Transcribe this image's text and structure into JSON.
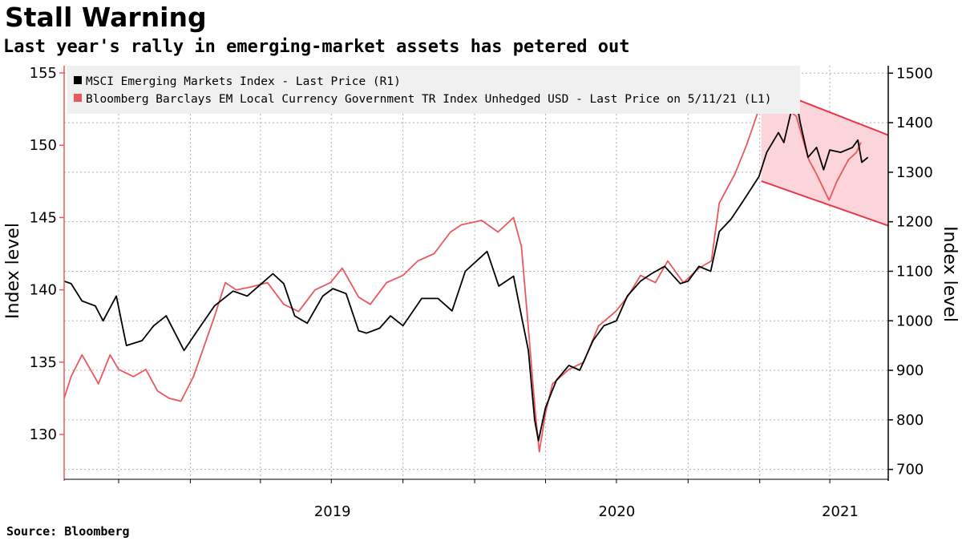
{
  "header": {
    "title": "Stall Warning",
    "subtitle": "Last year's rally in emerging-market assets has petered out"
  },
  "footer": {
    "source": "Source: Bloomberg"
  },
  "colors": {
    "msci": "#000000",
    "bloomberg": "#e8585e",
    "channel_fill": "#fbd5d9",
    "channel_line": "#e8394a",
    "grid": "#b0b0b0",
    "legend_bg": "#f0f0f0"
  },
  "chart_data": {
    "type": "line",
    "x_range": [
      "2018-07-23",
      "2021-06-15"
    ],
    "x_tick_labels": [
      {
        "label": "2019",
        "at": "2019-01-01"
      },
      {
        "label": "2020",
        "at": "2020-01-01"
      },
      {
        "label": "2021",
        "at": "2021-01-01"
      }
    ],
    "x_gridlines": [
      "2018-10-01",
      "2019-01-01",
      "2019-04-01",
      "2019-07-01",
      "2019-10-01",
      "2020-01-01",
      "2020-04-01",
      "2020-07-01",
      "2020-10-01",
      "2021-01-01",
      "2021-04-01"
    ],
    "left_axis": {
      "label": "Index level",
      "ylim": [
        126.9,
        155.5
      ],
      "ticks": [
        130,
        135,
        140,
        145,
        150,
        155
      ]
    },
    "right_axis": {
      "label": "Index level",
      "ylim": [
        680,
        1515
      ],
      "ticks": [
        700,
        800,
        900,
        1000,
        1100,
        1200,
        1300,
        1400,
        1500
      ]
    },
    "grid": true,
    "legend": {
      "placement": "top-left"
    },
    "series": [
      {
        "name": "MSCI Emerging Markets Index - Last Price (R1)",
        "axis": "right",
        "color": "#000000",
        "points": [
          [
            "2018-07-23",
            1080
          ],
          [
            "2018-08-01",
            1075
          ],
          [
            "2018-08-15",
            1040
          ],
          [
            "2018-09-01",
            1030
          ],
          [
            "2018-09-11",
            1000
          ],
          [
            "2018-09-28",
            1050
          ],
          [
            "2018-10-11",
            950
          ],
          [
            "2018-10-31",
            960
          ],
          [
            "2018-11-15",
            990
          ],
          [
            "2018-12-01",
            1010
          ],
          [
            "2018-12-24",
            940
          ],
          [
            "2019-01-10",
            980
          ],
          [
            "2019-02-01",
            1030
          ],
          [
            "2019-02-25",
            1060
          ],
          [
            "2019-03-15",
            1050
          ],
          [
            "2019-04-17",
            1095
          ],
          [
            "2019-05-01",
            1075
          ],
          [
            "2019-05-15",
            1010
          ],
          [
            "2019-05-31",
            995
          ],
          [
            "2019-06-20",
            1050
          ],
          [
            "2019-07-03",
            1065
          ],
          [
            "2019-07-20",
            1055
          ],
          [
            "2019-08-05",
            980
          ],
          [
            "2019-08-15",
            975
          ],
          [
            "2019-09-01",
            985
          ],
          [
            "2019-09-15",
            1010
          ],
          [
            "2019-10-01",
            990
          ],
          [
            "2019-10-25",
            1045
          ],
          [
            "2019-11-15",
            1045
          ],
          [
            "2019-12-03",
            1020
          ],
          [
            "2019-12-20",
            1100
          ],
          [
            "2020-01-17",
            1140
          ],
          [
            "2020-02-01",
            1070
          ],
          [
            "2020-02-20",
            1090
          ],
          [
            "2020-03-01",
            1010
          ],
          [
            "2020-03-10",
            940
          ],
          [
            "2020-03-18",
            800
          ],
          [
            "2020-03-23",
            758
          ],
          [
            "2020-04-01",
            825
          ],
          [
            "2020-04-15",
            880
          ],
          [
            "2020-05-01",
            910
          ],
          [
            "2020-05-15",
            900
          ],
          [
            "2020-06-01",
            960
          ],
          [
            "2020-06-15",
            990
          ],
          [
            "2020-07-01",
            1000
          ],
          [
            "2020-07-15",
            1050
          ],
          [
            "2020-08-01",
            1080
          ],
          [
            "2020-08-15",
            1095
          ],
          [
            "2020-09-01",
            1110
          ],
          [
            "2020-09-21",
            1075
          ],
          [
            "2020-10-01",
            1080
          ],
          [
            "2020-10-15",
            1110
          ],
          [
            "2020-10-30",
            1100
          ],
          [
            "2020-11-10",
            1180
          ],
          [
            "2020-11-25",
            1205
          ],
          [
            "2020-12-10",
            1240
          ],
          [
            "2020-12-31",
            1291
          ],
          [
            "2021-01-10",
            1340
          ],
          [
            "2021-01-25",
            1380
          ],
          [
            "2021-02-01",
            1360
          ],
          [
            "2021-02-10",
            1420
          ],
          [
            "2021-02-17",
            1445
          ],
          [
            "2021-02-22",
            1400
          ],
          [
            "2021-03-04",
            1330
          ],
          [
            "2021-03-15",
            1350
          ],
          [
            "2021-03-24",
            1305
          ],
          [
            "2021-04-01",
            1345
          ],
          [
            "2021-04-15",
            1340
          ],
          [
            "2021-04-30",
            1350
          ],
          [
            "2021-05-07",
            1365
          ],
          [
            "2021-05-12",
            1320
          ],
          [
            "2021-05-20",
            1330
          ]
        ]
      },
      {
        "name": "Bloomberg Barclays EM Local Currency Government TR Index Unhedged USD - Last Price on 5/11/21 (L1)",
        "axis": "left",
        "color": "#e8585e",
        "points": [
          [
            "2018-07-23",
            132.5
          ],
          [
            "2018-08-01",
            134.0
          ],
          [
            "2018-08-15",
            135.5
          ],
          [
            "2018-08-31",
            134.0
          ],
          [
            "2018-09-05",
            133.5
          ],
          [
            "2018-09-20",
            135.5
          ],
          [
            "2018-10-01",
            134.5
          ],
          [
            "2018-10-20",
            134.0
          ],
          [
            "2018-11-05",
            134.5
          ],
          [
            "2018-11-20",
            133.0
          ],
          [
            "2018-12-05",
            132.5
          ],
          [
            "2018-12-20",
            132.3
          ],
          [
            "2019-01-05",
            134.0
          ],
          [
            "2019-01-31",
            138.0
          ],
          [
            "2019-02-15",
            140.5
          ],
          [
            "2019-03-01",
            140.0
          ],
          [
            "2019-03-20",
            140.2
          ],
          [
            "2019-04-10",
            140.5
          ],
          [
            "2019-05-01",
            139.0
          ],
          [
            "2019-05-20",
            138.5
          ],
          [
            "2019-06-10",
            140.0
          ],
          [
            "2019-06-30",
            140.5
          ],
          [
            "2019-07-15",
            141.5
          ],
          [
            "2019-08-05",
            139.5
          ],
          [
            "2019-08-20",
            139.0
          ],
          [
            "2019-09-10",
            140.5
          ],
          [
            "2019-10-01",
            141.0
          ],
          [
            "2019-10-20",
            142.0
          ],
          [
            "2019-11-10",
            142.5
          ],
          [
            "2019-12-01",
            144.0
          ],
          [
            "2019-12-15",
            144.5
          ],
          [
            "2020-01-10",
            144.8
          ],
          [
            "2020-01-31",
            144.0
          ],
          [
            "2020-02-20",
            145.0
          ],
          [
            "2020-03-01",
            143.0
          ],
          [
            "2020-03-09",
            138.0
          ],
          [
            "2020-03-19",
            131.5
          ],
          [
            "2020-03-24",
            128.8
          ],
          [
            "2020-04-01",
            131.5
          ],
          [
            "2020-04-10",
            133.5
          ],
          [
            "2020-05-01",
            134.5
          ],
          [
            "2020-05-20",
            135.0
          ],
          [
            "2020-06-08",
            137.5
          ],
          [
            "2020-06-30",
            138.5
          ],
          [
            "2020-07-15",
            139.5
          ],
          [
            "2020-08-01",
            141.0
          ],
          [
            "2020-08-20",
            140.5
          ],
          [
            "2020-09-05",
            142.0
          ],
          [
            "2020-09-25",
            140.5
          ],
          [
            "2020-10-15",
            141.5
          ],
          [
            "2020-10-31",
            142.0
          ],
          [
            "2020-11-10",
            146.0
          ],
          [
            "2020-11-30",
            148.0
          ],
          [
            "2020-12-15",
            150.0
          ],
          [
            "2020-12-31",
            152.5
          ],
          [
            "2021-01-12",
            153.0
          ],
          [
            "2021-01-25",
            152.5
          ],
          [
            "2021-02-05",
            152.5
          ],
          [
            "2021-02-17",
            152.0
          ],
          [
            "2021-02-25",
            150.5
          ],
          [
            "2021-03-05",
            149.0
          ],
          [
            "2021-03-15",
            148.0
          ],
          [
            "2021-03-31",
            146.2
          ],
          [
            "2021-04-10",
            147.5
          ],
          [
            "2021-04-25",
            149.0
          ],
          [
            "2021-05-05",
            149.5
          ],
          [
            "2021-05-11",
            150.2
          ]
        ]
      }
    ],
    "annotations": [
      {
        "type": "channel",
        "axis": "right",
        "start": "2021-01-03",
        "end": "2021-06-15",
        "upper": [
          1475,
          1375
        ],
        "lower": [
          1282,
          1192
        ]
      }
    ]
  }
}
